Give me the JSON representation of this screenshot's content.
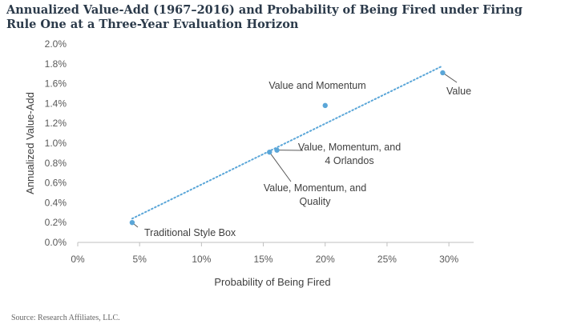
{
  "title": "Annualized Value-Add (1967–2016) and Probability of Being Fired under Firing Rule One at a Three-Year Evaluation Horizon",
  "source": "Source: Research Affiliates, LLC.",
  "colors": {
    "points": "#5aa6d8",
    "trend": "#5aa6d8",
    "axis": "#bfbfbf",
    "leader": "#595959"
  },
  "chart_data": {
    "type": "scatter",
    "title": "Annualized Value-Add (1967–2016) and Probability of Being Fired under Firing Rule One at a Three-Year Evaluation Horizon",
    "xlabel": "Probability of Being Fired",
    "ylabel": "Annualized Value-Add",
    "xlim": [
      0,
      0.32
    ],
    "ylim": [
      0,
      0.02
    ],
    "xticks": [
      0,
      0.05,
      0.1,
      0.15,
      0.2,
      0.25,
      0.3
    ],
    "xtick_labels": [
      "0%",
      "5%",
      "10%",
      "15%",
      "20%",
      "25%",
      "30%"
    ],
    "yticks": [
      0,
      0.002,
      0.004,
      0.006,
      0.008,
      0.01,
      0.012,
      0.014,
      0.016,
      0.018,
      0.02
    ],
    "ytick_labels": [
      "0.0%",
      "0.2%",
      "0.4%",
      "0.6%",
      "0.8%",
      "1.0%",
      "1.2%",
      "1.4%",
      "1.6%",
      "1.8%",
      "2.0%"
    ],
    "grid": false,
    "legend": "none",
    "trendline": {
      "style": "dotted",
      "x": [
        0.044,
        0.295
      ],
      "y": [
        0.0024,
        0.0178
      ]
    },
    "points": [
      {
        "label_lines": [
          "Traditional Style Box"
        ],
        "x": 0.044,
        "y": 0.002
      },
      {
        "label_lines": [
          "Value, Momentum, and",
          "Quality"
        ],
        "x": 0.155,
        "y": 0.0091
      },
      {
        "label_lines": [
          "Value, Momentum, and",
          "4 Orlandos"
        ],
        "x": 0.161,
        "y": 0.0093
      },
      {
        "label_lines": [
          "Value and Momentum"
        ],
        "x": 0.2,
        "y": 0.0138
      },
      {
        "label_lines": [
          "Value"
        ],
        "x": 0.295,
        "y": 0.0171
      }
    ]
  }
}
